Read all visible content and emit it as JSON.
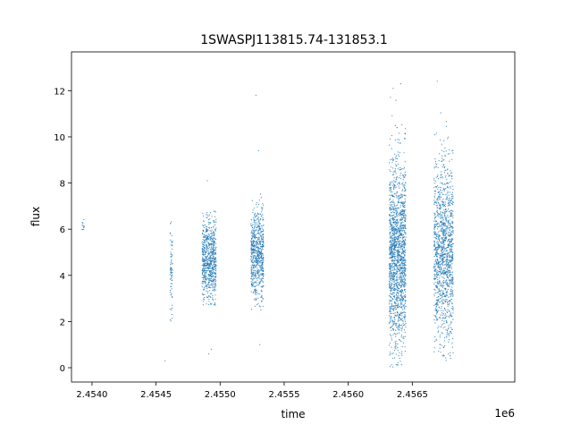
{
  "chart_data": {
    "type": "scatter",
    "title": "1SWASPJ113815.74-131853.1",
    "xlabel": "time",
    "ylabel": "flux",
    "x_offset_label": "1e6",
    "xlim": [
      2.45384,
      2.4573
    ],
    "ylim": [
      -0.62,
      13.68
    ],
    "x_ticks": [
      2.454,
      2.4545,
      2.455,
      2.4555,
      2.456,
      2.4565
    ],
    "x_tick_labels": [
      "2.4540",
      "2.4545",
      "2.4550",
      "2.4555",
      "2.4560",
      "2.4565"
    ],
    "y_ticks": [
      0,
      2,
      4,
      6,
      8,
      10,
      12
    ],
    "y_tick_labels": [
      "0",
      "2",
      "4",
      "6",
      "8",
      "10",
      "12"
    ],
    "grid": false,
    "marker_color": "#1f77b4",
    "clusters": [
      {
        "x_range": [
          2.45392,
          2.45394
        ],
        "flux_mean": 6.2,
        "flux_sd": 0.2,
        "flux_range": [
          5.9,
          6.6
        ],
        "count": 12
      },
      {
        "x_range": [
          2.45461,
          2.45463
        ],
        "flux_mean": 4.5,
        "flux_sd": 1.2,
        "flux_range": [
          1.7,
          6.7
        ],
        "count": 70
      },
      {
        "x_range": [
          2.45486,
          2.45497
        ],
        "flux_mean": 4.6,
        "flux_sd": 0.9,
        "flux_range": [
          2.7,
          6.8
        ],
        "count": 700
      },
      {
        "x_range": [
          2.45524,
          2.45534
        ],
        "flux_mean": 4.9,
        "flux_sd": 1.0,
        "flux_range": [
          2.5,
          7.8
        ],
        "count": 650
      },
      {
        "x_range": [
          2.45632,
          2.45645
        ],
        "flux_mean": 4.9,
        "flux_sd": 2.0,
        "flux_range": [
          0.0,
          13.0
        ],
        "count": 1600
      },
      {
        "x_range": [
          2.45667,
          2.45682
        ],
        "flux_mean": 5.0,
        "flux_sd": 1.9,
        "flux_range": [
          0.3,
          13.0
        ],
        "count": 1300
      }
    ],
    "outliers": [
      {
        "x": 2.45457,
        "y": 0.3
      },
      {
        "x": 2.4549,
        "y": 8.1
      },
      {
        "x": 2.45491,
        "y": 0.6
      },
      {
        "x": 2.45493,
        "y": 0.8
      },
      {
        "x": 2.45528,
        "y": 11.8
      },
      {
        "x": 2.4553,
        "y": 9.4
      },
      {
        "x": 2.45531,
        "y": 1.0
      }
    ]
  }
}
